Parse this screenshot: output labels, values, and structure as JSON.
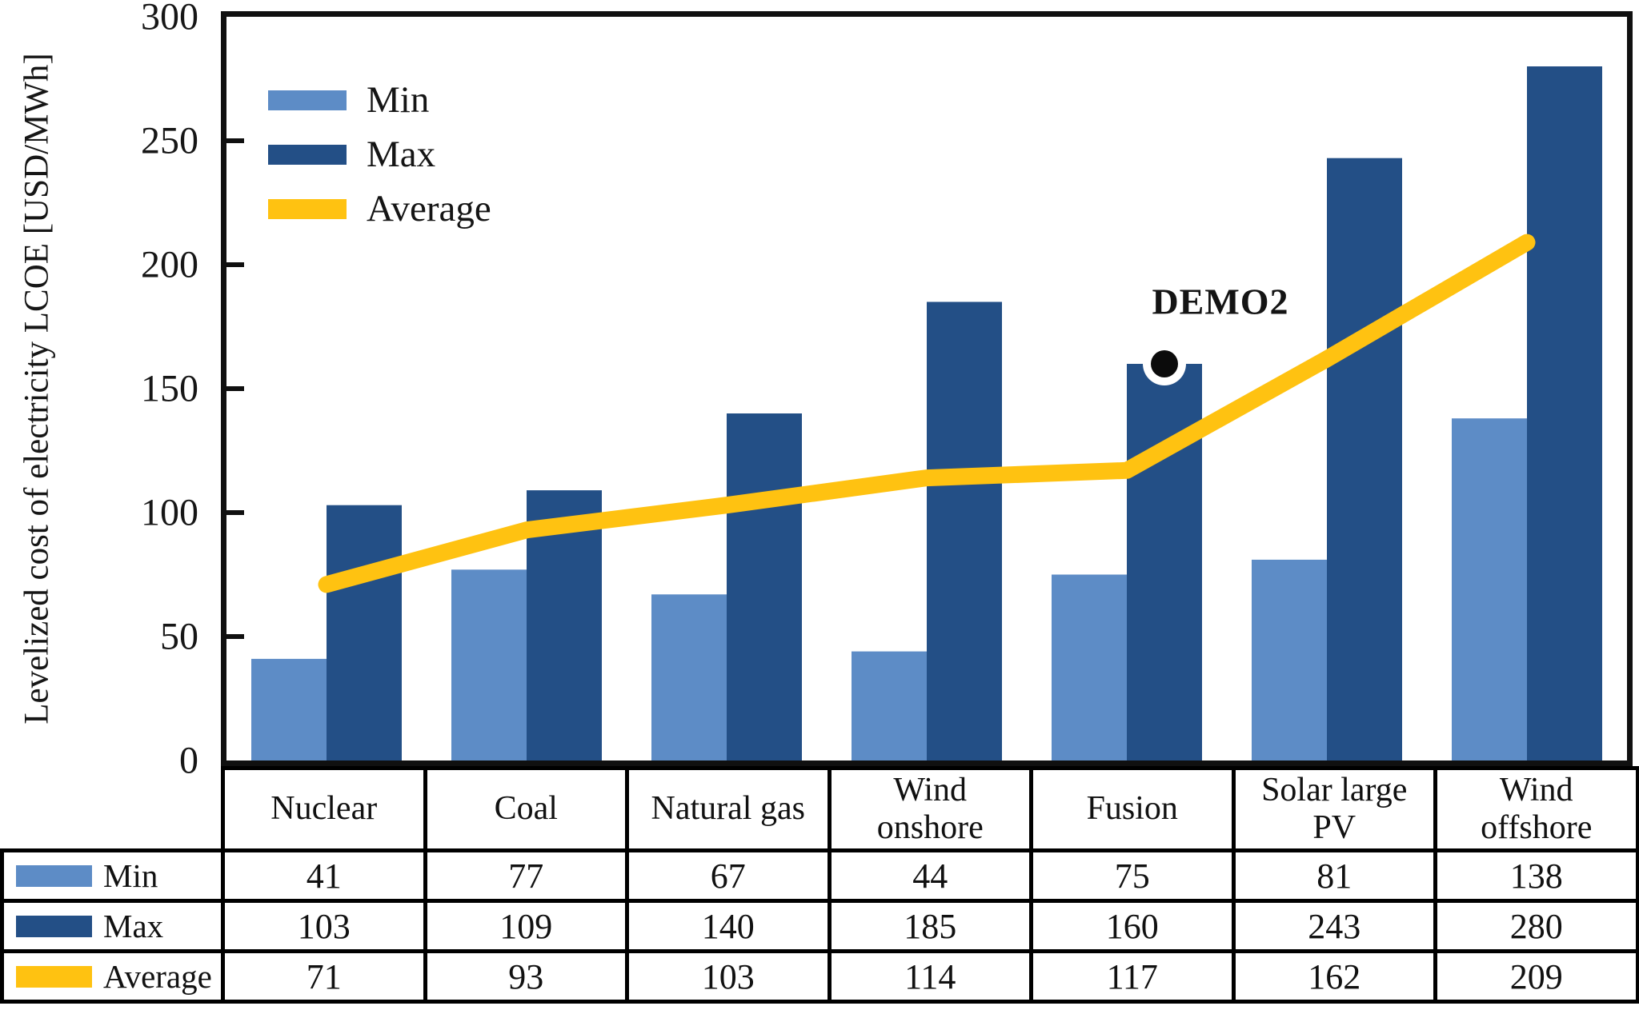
{
  "chart_data": {
    "type": "bar",
    "title": "",
    "xlabel": "",
    "ylabel": "Levelized cost of electricity LCOE [USD/MWh]",
    "ylim": [
      0,
      300
    ],
    "ytick_step": 50,
    "y_tick_labels": [
      "0",
      "50",
      "100",
      "150",
      "200",
      "250",
      "300"
    ],
    "grid": false,
    "legend_position": "top-left-inside",
    "categories": [
      "Nuclear",
      "Coal",
      "Natural gas",
      "Wind onshore",
      "Fusion",
      "Solar large PV",
      "Wind offshore"
    ],
    "series": [
      {
        "name": "Min",
        "type": "bar",
        "color": "#5d8cc6",
        "values": [
          41,
          77,
          67,
          44,
          75,
          81,
          138
        ]
      },
      {
        "name": "Max",
        "type": "bar",
        "color": "#234f86",
        "values": [
          103,
          109,
          140,
          185,
          160,
          243,
          280
        ]
      },
      {
        "name": "Average",
        "type": "line",
        "color": "#ffc211",
        "values": [
          71,
          93,
          103,
          114,
          117,
          162,
          209
        ]
      }
    ],
    "annotation": {
      "label": "DEMO2",
      "category": "Fusion",
      "attach_series": "Max",
      "value": 160,
      "marker": "black-dot-with-white-halo"
    }
  },
  "colors": {
    "axis": "#101010",
    "table_border": "#000000",
    "background": "#ffffff"
  }
}
